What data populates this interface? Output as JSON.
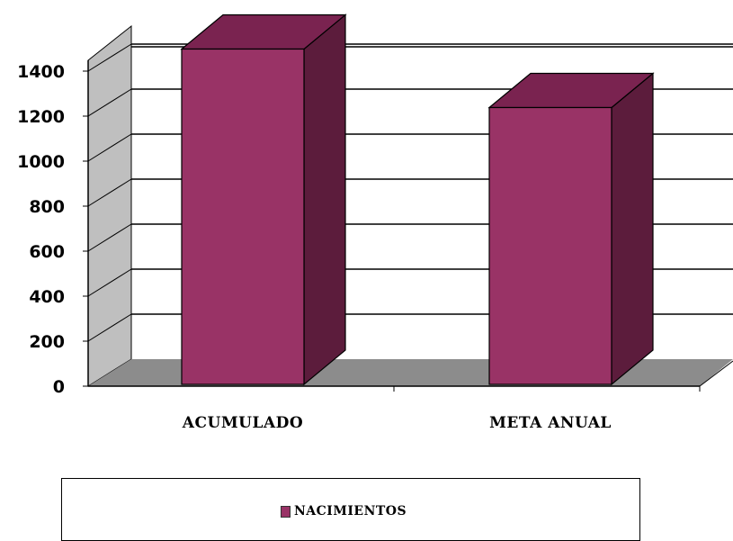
{
  "chart_data": {
    "type": "bar",
    "categories": [
      "ACUMULADO",
      "META ANUAL"
    ],
    "series": [
      {
        "name": "NACIMIENTOS",
        "values": [
          1490,
          1230
        ]
      }
    ],
    "ylim": [
      0,
      1400
    ],
    "yticks": [
      0,
      200,
      400,
      600,
      800,
      1000,
      1200,
      1400
    ],
    "grid": true,
    "legend_position": "bottom",
    "colors": {
      "bar_front": "#993366",
      "bar_top": "#7a2350",
      "bar_side": "#5c1c3c",
      "wall": "#bfbfbf",
      "floor": "#8c8c8c"
    }
  }
}
